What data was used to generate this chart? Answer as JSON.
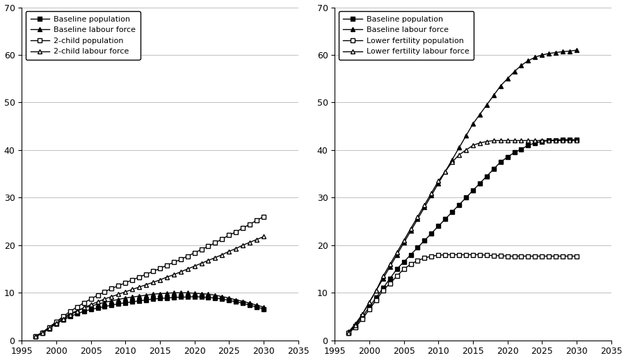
{
  "years": [
    1997,
    1998,
    1999,
    2000,
    2001,
    2002,
    2003,
    2004,
    2005,
    2006,
    2007,
    2008,
    2009,
    2010,
    2011,
    2012,
    2013,
    2014,
    2015,
    2016,
    2017,
    2018,
    2019,
    2020,
    2021,
    2022,
    2023,
    2024,
    2025,
    2026,
    2027,
    2028,
    2029,
    2030
  ],
  "left": {
    "baseline_pop": [
      0.8,
      1.5,
      2.5,
      3.5,
      4.3,
      5.0,
      5.6,
      6.1,
      6.5,
      6.8,
      7.1,
      7.4,
      7.7,
      7.9,
      8.1,
      8.3,
      8.5,
      8.7,
      8.8,
      8.9,
      9.0,
      9.1,
      9.1,
      9.2,
      9.1,
      9.0,
      8.9,
      8.7,
      8.4,
      8.1,
      7.8,
      7.4,
      7.0,
      6.6
    ],
    "baseline_lf": [
      0.9,
      1.7,
      2.8,
      3.9,
      4.8,
      5.6,
      6.2,
      6.8,
      7.2,
      7.6,
      8.0,
      8.3,
      8.6,
      8.9,
      9.1,
      9.3,
      9.5,
      9.7,
      9.8,
      9.9,
      10.0,
      10.0,
      10.0,
      9.9,
      9.8,
      9.7,
      9.5,
      9.2,
      8.9,
      8.5,
      8.2,
      7.8,
      7.4,
      7.0
    ],
    "child2_pop": [
      0.8,
      1.6,
      2.7,
      3.9,
      5.0,
      6.1,
      7.0,
      7.9,
      8.7,
      9.5,
      10.2,
      10.9,
      11.5,
      12.1,
      12.7,
      13.3,
      13.9,
      14.5,
      15.1,
      15.8,
      16.4,
      17.0,
      17.7,
      18.4,
      19.1,
      19.8,
      20.5,
      21.3,
      22.1,
      22.8,
      23.6,
      24.4,
      25.2,
      26.0
    ],
    "child2_lf": [
      0.8,
      1.5,
      2.6,
      3.6,
      4.5,
      5.4,
      6.1,
      6.9,
      7.5,
      8.1,
      8.7,
      9.2,
      9.7,
      10.2,
      10.7,
      11.2,
      11.7,
      12.2,
      12.7,
      13.3,
      13.8,
      14.4,
      15.0,
      15.6,
      16.2,
      16.8,
      17.4,
      18.0,
      18.7,
      19.3,
      20.0,
      20.6,
      21.2,
      21.8
    ]
  },
  "right": {
    "baseline_pop": [
      1.5,
      3.0,
      5.0,
      7.0,
      9.0,
      11.0,
      13.0,
      15.0,
      16.5,
      18.0,
      19.5,
      21.0,
      22.5,
      24.0,
      25.5,
      27.0,
      28.5,
      30.0,
      31.5,
      33.0,
      34.5,
      36.0,
      37.5,
      38.5,
      39.5,
      40.2,
      41.0,
      41.5,
      41.8,
      42.0,
      42.1,
      42.2,
      42.2,
      42.2
    ],
    "baseline_lf": [
      1.8,
      3.5,
      5.5,
      8.0,
      10.5,
      13.0,
      15.5,
      18.0,
      20.5,
      23.0,
      25.5,
      28.0,
      30.5,
      33.0,
      35.5,
      38.0,
      40.5,
      43.0,
      45.5,
      47.5,
      49.5,
      51.5,
      53.5,
      55.0,
      56.5,
      57.8,
      58.8,
      59.5,
      60.0,
      60.3,
      60.5,
      60.7,
      60.8,
      61.0
    ],
    "lower_fert_pop": [
      1.5,
      2.8,
      4.5,
      6.5,
      8.5,
      10.5,
      12.0,
      13.5,
      15.0,
      16.0,
      16.8,
      17.3,
      17.7,
      17.9,
      18.0,
      18.0,
      18.0,
      18.0,
      18.0,
      18.0,
      17.9,
      17.8,
      17.8,
      17.7,
      17.7,
      17.7,
      17.7,
      17.7,
      17.7,
      17.7,
      17.7,
      17.7,
      17.7,
      17.7
    ],
    "lower_fert_lf": [
      1.6,
      3.2,
      5.5,
      8.0,
      10.5,
      13.5,
      16.0,
      18.5,
      21.0,
      23.5,
      26.0,
      28.5,
      31.0,
      33.5,
      35.5,
      37.5,
      39.0,
      40.0,
      41.0,
      41.5,
      41.8,
      42.0,
      42.0,
      42.0,
      42.0,
      42.0,
      42.0,
      42.0,
      42.0,
      42.0,
      42.0,
      42.0,
      42.0,
      42.0
    ]
  },
  "left_legend": [
    "Baseline population",
    "Baseline labour force",
    "2-child population",
    "2-child labour force"
  ],
  "right_legend": [
    "Baseline population",
    "Baseline labour force",
    "Lower fertility population",
    "Lower fertility labour force"
  ],
  "xlim": [
    1995,
    2035
  ],
  "ylim": [
    0,
    70
  ],
  "xticks": [
    1995,
    2000,
    2005,
    2010,
    2015,
    2020,
    2025,
    2030,
    2035
  ],
  "yticks": [
    0,
    10,
    20,
    30,
    40,
    50,
    60,
    70
  ],
  "line_color": "#000000",
  "bg_color": "#ffffff",
  "grid_color": "#c0c0c0",
  "marker_size": 4,
  "line_width": 1.0
}
